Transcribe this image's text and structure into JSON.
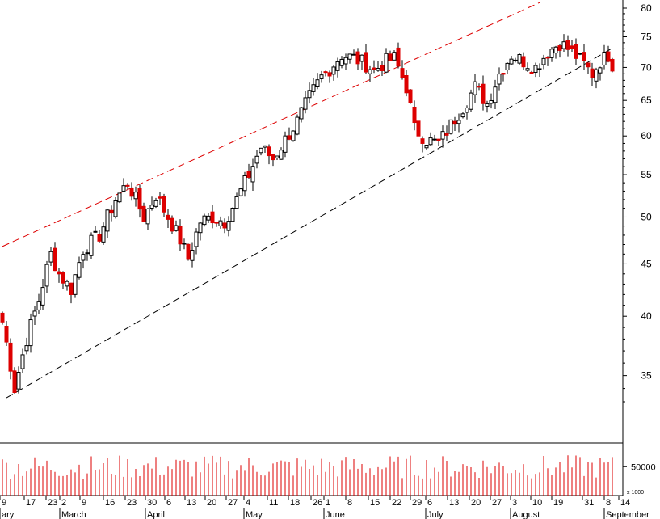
{
  "chart_data": {
    "type": "candlestick",
    "y_axis": {
      "scale": "log",
      "range": [
        30,
        80
      ],
      "ticks": [
        35,
        40,
        45,
        50,
        55,
        60,
        65,
        70,
        75,
        80
      ],
      "position": "right"
    },
    "x_axis": {
      "day_ticks": [
        "9",
        "17",
        "23",
        "2",
        "9",
        "16",
        "23",
        "30",
        "6",
        "13",
        "20",
        "27",
        "4",
        "11",
        "18",
        "26",
        "1",
        "8",
        "15",
        "22",
        "29",
        "6",
        "13",
        "20",
        "27",
        "3",
        "10",
        "19",
        "31",
        "8",
        "14"
      ],
      "months": [
        {
          "label": "ary",
          "tick": 0
        },
        {
          "label": "March",
          "tick": 3
        },
        {
          "label": "April",
          "tick": 7
        },
        {
          "label": "May",
          "tick": 12
        },
        {
          "label": "June",
          "tick": 16
        },
        {
          "label": "July",
          "tick": 21
        },
        {
          "label": "August",
          "tick": 25
        },
        {
          "label": "September",
          "tick": 29
        }
      ]
    },
    "price_anchors": [
      [
        0,
        39.5
      ],
      [
        3,
        34.0
      ],
      [
        6,
        38.0
      ],
      [
        9,
        41.5
      ],
      [
        12,
        46.0
      ],
      [
        14,
        44.0
      ],
      [
        17,
        42.5
      ],
      [
        20,
        46.5
      ],
      [
        24,
        48.0
      ],
      [
        28,
        52.0
      ],
      [
        31,
        54.0
      ],
      [
        35,
        50.0
      ],
      [
        38,
        52.5
      ],
      [
        41,
        50.0
      ],
      [
        44,
        47.5
      ],
      [
        46,
        45.5
      ],
      [
        49,
        49.5
      ],
      [
        52,
        50.0
      ],
      [
        55,
        49.5
      ],
      [
        58,
        52.0
      ],
      [
        61,
        55.0
      ],
      [
        64,
        58.5
      ],
      [
        67,
        57.0
      ],
      [
        70,
        59.5
      ],
      [
        73,
        62.0
      ],
      [
        76,
        65.5
      ],
      [
        79,
        68.5
      ],
      [
        82,
        70.5
      ],
      [
        84,
        72.0
      ],
      [
        87,
        71.5
      ],
      [
        90,
        70.5
      ],
      [
        92,
        69.5
      ],
      [
        95,
        71.0
      ],
      [
        97,
        71.5
      ],
      [
        100,
        67.0
      ],
      [
        102,
        61.0
      ],
      [
        105,
        59.5
      ],
      [
        108,
        59.0
      ],
      [
        111,
        61.5
      ],
      [
        114,
        64.0
      ],
      [
        117,
        67.0
      ],
      [
        120,
        64.5
      ],
      [
        123,
        69.0
      ],
      [
        126,
        72.0
      ],
      [
        129,
        71.0
      ],
      [
        132,
        70.0
      ],
      [
        135,
        72.5
      ],
      [
        138,
        74.0
      ],
      [
        141,
        72.5
      ],
      [
        144,
        70.5
      ],
      [
        146,
        69.0
      ],
      [
        148,
        71.0
      ],
      [
        150,
        72.0
      ],
      [
        151,
        70.5
      ]
    ],
    "channel": {
      "upper": {
        "from": [
          0,
          46.8
        ],
        "to": [
          133,
          81.0
        ],
        "color": "#dd0000"
      },
      "lower": {
        "from": [
          1,
          33.3
        ],
        "to": [
          151,
          73.1
        ],
        "color": "#000000"
      }
    },
    "volume": {
      "axis_labels": [
        "50000",
        "x 1000"
      ],
      "level": 0.55
    },
    "colors": {
      "up": "#ffffff",
      "down": "#dd0000",
      "outline": "#000000",
      "axis": "#000000"
    }
  }
}
